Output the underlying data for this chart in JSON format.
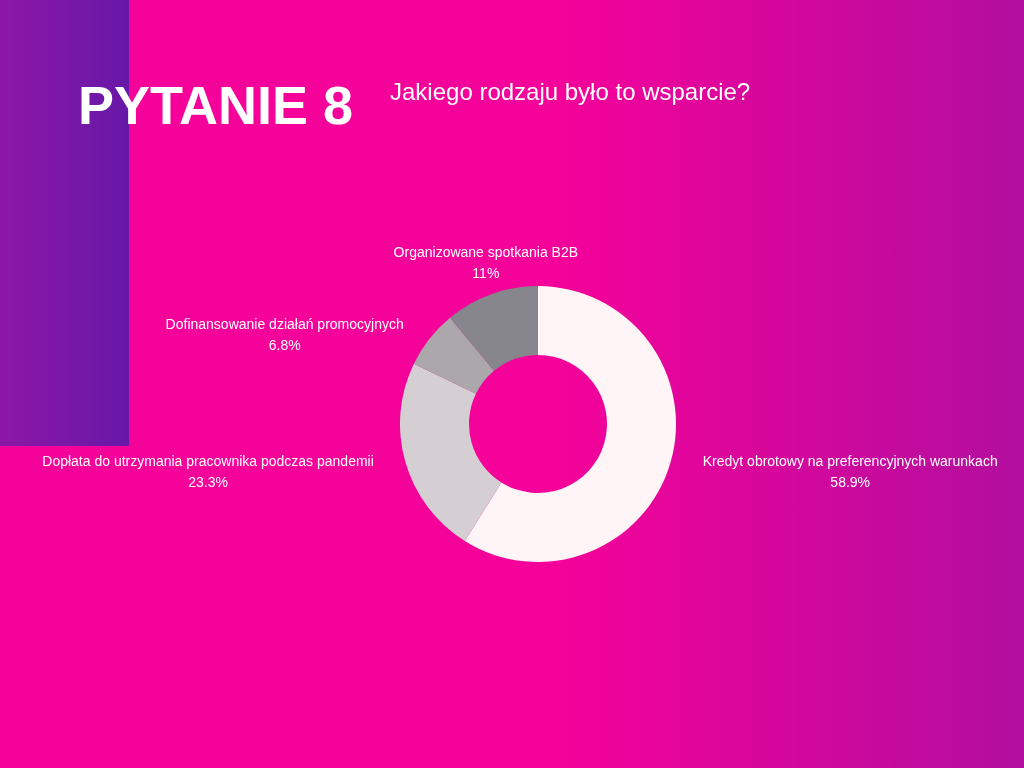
{
  "chart_data": {
    "type": "donut",
    "title": "PYTANIE 8",
    "subtitle": "Jakiego rodzaju było to wsparcie?",
    "categories": [
      "Kredyt obrotowy na preferencyjnych warunkach",
      "Dopłata do utrzymania pracownika podczas pandemii",
      "Dofinansowanie działań promocyjnych",
      "Organizowane spotkania B2B"
    ],
    "values": [
      58.9,
      23.3,
      6.8,
      11
    ],
    "value_labels": [
      "58.9%",
      "23.3%",
      "6.8%",
      "11%"
    ],
    "colors": [
      "#fff4f6",
      "#d5cfd3",
      "#aba7ab",
      "#87868c"
    ]
  }
}
